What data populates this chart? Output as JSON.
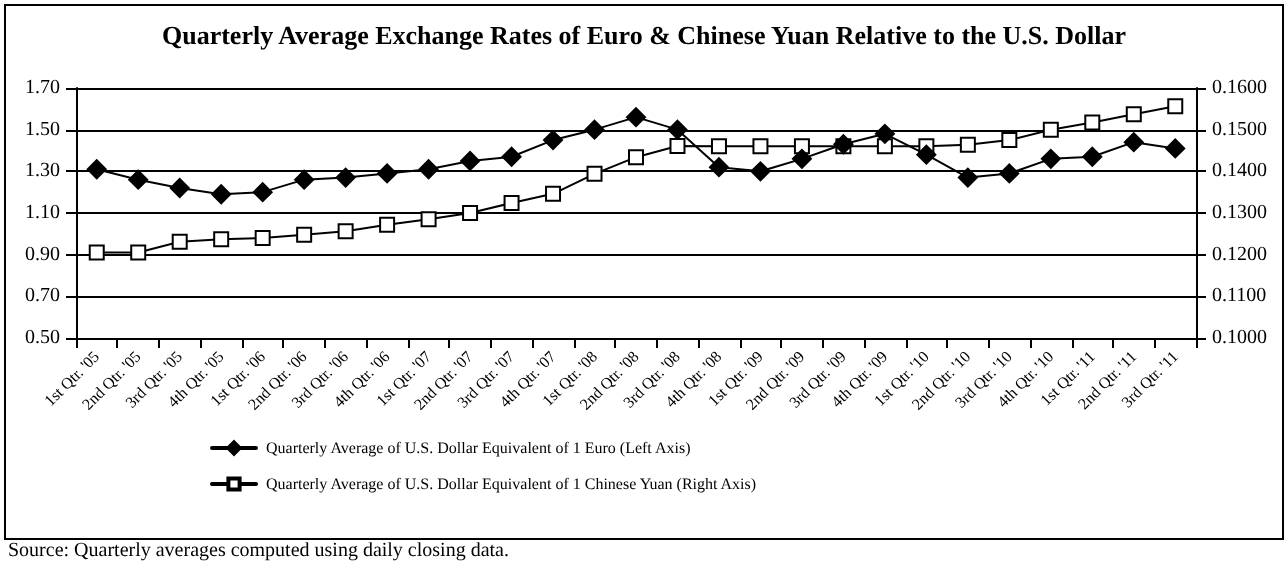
{
  "chart_data": {
    "type": "line",
    "title": "Quarterly Average Exchange Rates of Euro & Chinese Yuan Relative to the U.S. Dollar",
    "categories": [
      "1st Qtr. '05",
      "2nd Qtr. '05",
      "3rd Qtr. '05",
      "4th Qtr. '05",
      "1st Qtr. '06",
      "2nd Qtr. '06",
      "3rd Qtr. '06",
      "4th Qtr. '06",
      "1st Qtr. '07",
      "2nd Qtr. '07",
      "3rd Qtr. '07",
      "4th Qtr. '07",
      "1st Qtr. '08",
      "2nd Qtr. '08",
      "3rd Qtr. '08",
      "4th Qtr. '08",
      "1st Qtr. '09",
      "2nd Qtr. '09",
      "3rd Qtr. '09",
      "4th Qtr. '09",
      "1st Qtr. '10",
      "2nd Qtr. '10",
      "3rd Qtr. '10",
      "4th Qtr. '10",
      "1st Qtr. '11",
      "2nd Qtr. '11",
      "3rd Qtr. '11"
    ],
    "series": [
      {
        "name": "Quarterly Average of U.S. Dollar Equivalent of 1 Euro (Left Axis)",
        "color": "#000000",
        "marker": "diamond",
        "values": [
          1.31,
          1.26,
          1.22,
          1.19,
          1.2,
          1.26,
          1.27,
          1.29,
          1.31,
          1.35,
          1.37,
          1.45,
          1.5,
          1.56,
          1.5,
          1.32,
          1.3,
          1.36,
          1.43,
          1.48,
          1.38,
          1.27,
          1.29,
          1.36,
          1.37,
          1.44,
          1.41
        ]
      },
      {
        "name": "Quarterly Average of U.S. Dollar Equivalent of 1 Chinese Yuan (Right Axis)",
        "color": "#000000",
        "marker": "square",
        "axis": "y2",
        "values": [
          0.1205,
          0.1205,
          0.1231,
          0.1237,
          0.124,
          0.1248,
          0.1256,
          0.1272,
          0.1285,
          0.13,
          0.1324,
          0.1346,
          0.1394,
          0.1434,
          0.1461,
          0.146,
          0.146,
          0.146,
          0.146,
          0.146,
          0.146,
          0.1464,
          0.1475,
          0.15,
          0.1517,
          0.1537,
          0.1556
        ]
      }
    ],
    "ylim": [
      0.5,
      1.7
    ],
    "yticks": [
      {
        "value": 0.5,
        "label": "0.50"
      },
      {
        "value": 0.7,
        "label": "0.70"
      },
      {
        "value": 0.9,
        "label": "0.90"
      },
      {
        "value": 1.1,
        "label": "1.10"
      },
      {
        "value": 1.3,
        "label": "1.30"
      },
      {
        "value": 1.5,
        "label": "1.50"
      },
      {
        "value": 1.7,
        "label": "1.70"
      }
    ],
    "y2lim": [
      0.1,
      0.16
    ],
    "y2ticks": [
      {
        "value": 0.1,
        "label": "0.1000"
      },
      {
        "value": 0.11,
        "label": "0.1100"
      },
      {
        "value": 0.12,
        "label": "0.1200"
      },
      {
        "value": 0.13,
        "label": "0.1300"
      },
      {
        "value": 0.14,
        "label": "0.1400"
      },
      {
        "value": 0.15,
        "label": "0.1500"
      },
      {
        "value": 0.16,
        "label": "0.1600"
      }
    ],
    "grid": "y",
    "legend": "bottom",
    "line_style": "solid",
    "annotations": [
      "Source:  Quarterly averages computed using daily closing data."
    ]
  }
}
